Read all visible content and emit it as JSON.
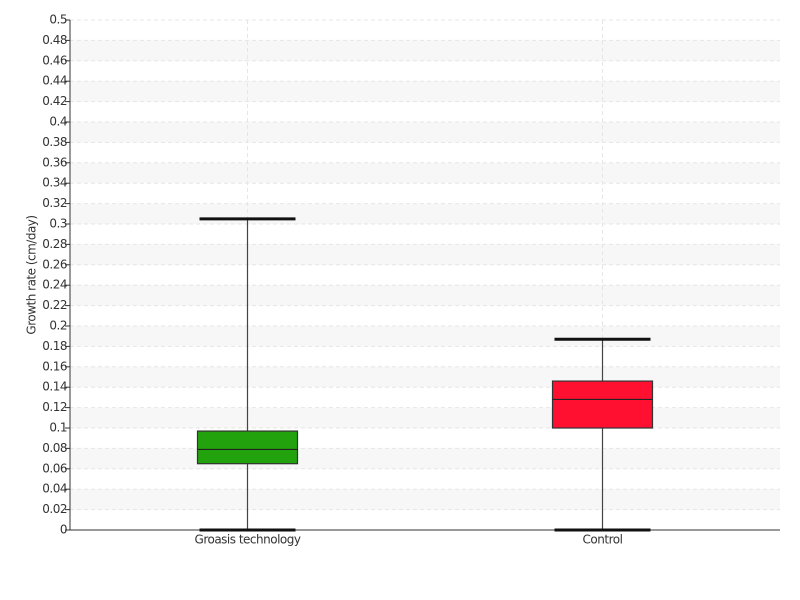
{
  "chart_data": {
    "type": "box",
    "y_label": "Growth rate (cm/day)",
    "categories": [
      "Groasis technology",
      "Control"
    ],
    "boxes": [
      {
        "min": 0,
        "q1": 0.065,
        "median": 0.079,
        "q3": 0.097,
        "max": 0.305,
        "color": "#22a20c"
      },
      {
        "min": 0,
        "q1": 0.1,
        "median": 0.128,
        "q3": 0.146,
        "max": 0.187,
        "color": "#ff1030"
      }
    ],
    "ylim": [
      0,
      0.5
    ],
    "yticks": [
      0,
      0.02,
      0.04,
      0.06,
      0.08,
      0.1,
      0.12,
      0.14,
      0.16,
      0.18,
      0.2,
      0.22,
      0.24,
      0.26,
      0.28,
      0.3,
      0.32,
      0.34,
      0.36,
      0.38,
      0.4,
      0.42,
      0.44,
      0.46,
      0.48,
      0.5
    ],
    "grid": true
  }
}
